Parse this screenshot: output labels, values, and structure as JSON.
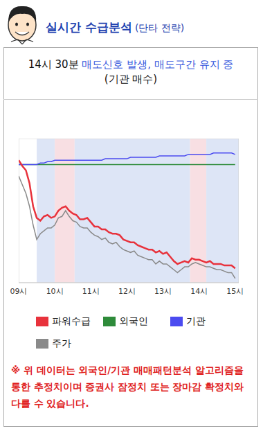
{
  "header": {
    "title": "실시간 수급분석",
    "subtitle": "(단타 전략)"
  },
  "status": {
    "time": "14시 30분",
    "signal": "매도신호 발생, 매도구간 유지 중",
    "note": "(기관 매수)"
  },
  "chart_data": {
    "type": "line",
    "grid": false,
    "tick_labels": "x",
    "xlim": [
      9,
      15.1
    ],
    "xticks": [
      {
        "value": 9,
        "label": "09시"
      },
      {
        "value": 10,
        "label": "10시"
      },
      {
        "value": 11,
        "label": "11시"
      },
      {
        "value": 12,
        "label": "12시"
      },
      {
        "value": 13,
        "label": "13시"
      },
      {
        "value": 14,
        "label": "14시"
      },
      {
        "value": 15,
        "label": "15시"
      }
    ],
    "ylim": [
      0,
      100
    ],
    "x": [
      9.0,
      9.1,
      9.2,
      9.3,
      9.4,
      9.5,
      9.6,
      9.7,
      9.8,
      9.9,
      10.0,
      10.1,
      10.2,
      10.3,
      10.4,
      10.5,
      10.6,
      10.7,
      10.8,
      10.9,
      11.0,
      11.1,
      11.2,
      11.3,
      11.4,
      11.5,
      11.6,
      11.7,
      11.8,
      11.9,
      12.0,
      12.1,
      12.2,
      12.3,
      12.4,
      12.5,
      12.6,
      12.7,
      12.8,
      12.9,
      13.0,
      13.1,
      13.2,
      13.3,
      13.4,
      13.5,
      13.6,
      13.7,
      13.8,
      13.9,
      14.0,
      14.1,
      14.2,
      14.3,
      14.4,
      14.5,
      14.6,
      14.7,
      14.8,
      14.9,
      15.0
    ],
    "series": [
      {
        "name": "파워수급",
        "color": "#e8323c",
        "values": [
          85,
          81,
          78,
          69,
          53,
          45,
          43,
          46,
          47,
          45,
          46,
          50,
          52,
          53,
          50,
          48,
          47,
          44,
          44,
          45,
          42,
          39,
          39,
          37,
          37,
          35,
          34,
          34,
          33,
          30,
          29,
          28,
          28,
          26,
          25,
          24,
          23,
          23,
          21,
          22,
          20,
          21,
          18,
          15,
          13,
          14,
          15,
          14,
          17,
          16,
          16,
          15,
          14,
          15,
          13,
          13,
          13,
          12,
          12,
          12,
          10
        ]
      },
      {
        "name": "외국인",
        "color": "#2e8b3a",
        "values": [
          82,
          82,
          82,
          82,
          82,
          82,
          82,
          82,
          82,
          82,
          82,
          82,
          82,
          82,
          82,
          82,
          82,
          82,
          82,
          82,
          82,
          82,
          82,
          82,
          82,
          82,
          82,
          82,
          82,
          82,
          82,
          82,
          82,
          82,
          82,
          82,
          82,
          82,
          82,
          82,
          82,
          82,
          82,
          82,
          82,
          82,
          82,
          82,
          82,
          82,
          82,
          82,
          82,
          82,
          82,
          82,
          82,
          82,
          82,
          82,
          82
        ]
      },
      {
        "name": "기관",
        "color": "#4b4bf0",
        "values": [
          82,
          82,
          82,
          82,
          82,
          82,
          83,
          83,
          84,
          84,
          85,
          85,
          85,
          85,
          85,
          85,
          85,
          85,
          85,
          85,
          85,
          85,
          85,
          85,
          86,
          86,
          86,
          86,
          86,
          86,
          86,
          87,
          87,
          87,
          87,
          87,
          87,
          87,
          87,
          88,
          88,
          88,
          88,
          88,
          88,
          88,
          88,
          89,
          89,
          89,
          89,
          89,
          89,
          89,
          90,
          90,
          90,
          90,
          90,
          90,
          89
        ]
      },
      {
        "name": "주가",
        "color": "#8a8a8a",
        "values": [
          74,
          68,
          62,
          53,
          40,
          30,
          34,
          36,
          38,
          38,
          40,
          45,
          46,
          50,
          46,
          43,
          42,
          39,
          38,
          38,
          35,
          33,
          32,
          30,
          31,
          28,
          27,
          28,
          25,
          23,
          22,
          21,
          22,
          19,
          18,
          17,
          16,
          16,
          13,
          15,
          13,
          13,
          11,
          9,
          7,
          9,
          11,
          11,
          13,
          14,
          13,
          12,
          11,
          11,
          10,
          9,
          9,
          8,
          7,
          7,
          3
        ]
      }
    ],
    "bands": [
      {
        "x1": 9.5,
        "x2": 10.0,
        "color": "#dde5f6"
      },
      {
        "x1": 10.0,
        "x2": 10.55,
        "color": "#f8dfe3"
      },
      {
        "x1": 10.55,
        "x2": 13.75,
        "color": "#dde5f6"
      },
      {
        "x1": 13.75,
        "x2": 14.2,
        "color": "#f8dfe3"
      },
      {
        "x1": 14.2,
        "x2": 15.1,
        "color": "#dde5f6"
      }
    ]
  },
  "footnote": "※ 위 데이터는 외국인/기관 매매패턴분석 알고리즘을 통한 추정치이며 증권사 잠정치 또는 장마감 확정치와 다를 수 있습니다."
}
